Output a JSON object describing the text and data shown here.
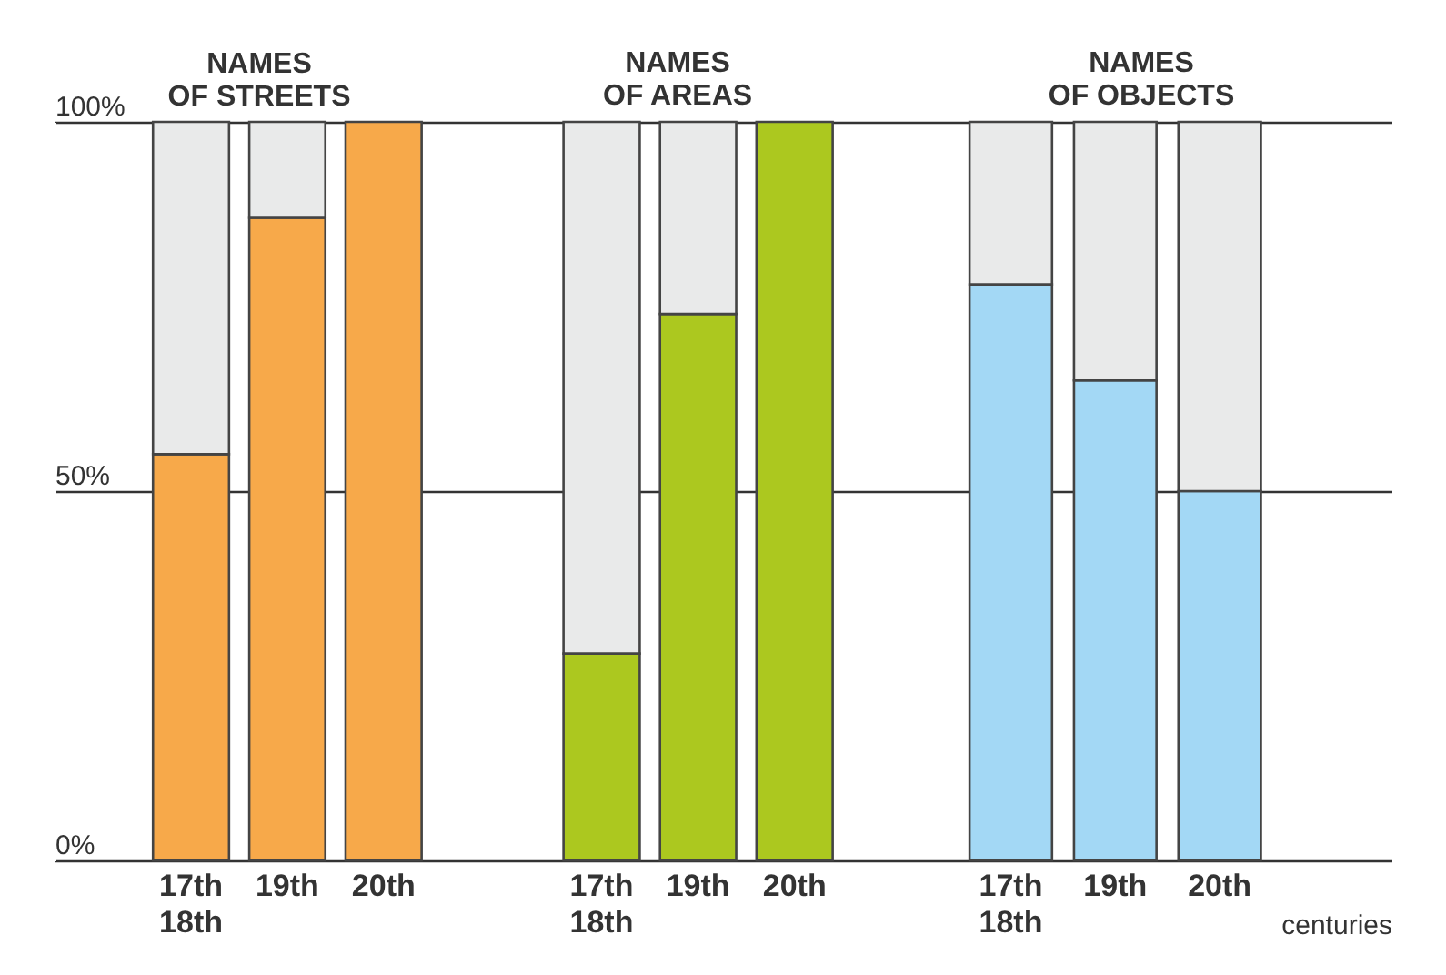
{
  "chart_data": [
    {
      "type": "bar",
      "title": "NAMES OF STREETS",
      "categories": [
        "17th 18th",
        "19th",
        "20th"
      ],
      "stacked": true,
      "ylim": [
        0,
        100
      ],
      "yticks": [
        {
          "value": 0,
          "label": "0%"
        },
        {
          "value": 50,
          "label": "50%"
        },
        {
          "value": 100,
          "label": "100%"
        }
      ],
      "grid": "y",
      "series": [
        {
          "color": "#f7a94a",
          "values": [
            55,
            87,
            100
          ]
        },
        {
          "color": "#e9eaea",
          "values": [
            45,
            13,
            null
          ]
        }
      ]
    },
    {
      "type": "bar",
      "title": "NAMES OF AREAS",
      "categories": [
        "17th 18th",
        "19th",
        "20th"
      ],
      "stacked": true,
      "ylim": [
        0,
        100
      ],
      "yticks": [
        0,
        50,
        100
      ],
      "grid": "y",
      "tick_labels": "x",
      "series": [
        {
          "color": "#acc81f",
          "values": [
            28,
            74,
            100
          ]
        },
        {
          "color": "#e9eaea",
          "values": [
            72,
            26,
            null
          ]
        }
      ]
    },
    {
      "type": "bar",
      "title": "NAMES OF OBJECTS",
      "xlabel": "centuries",
      "categories": [
        "17th 18th",
        "19th",
        "20th"
      ],
      "stacked": true,
      "ylim": [
        0,
        100
      ],
      "yticks": [
        0,
        50,
        100
      ],
      "grid": "y",
      "tick_labels": "x",
      "series": [
        {
          "color": "#a3d8f5",
          "values": [
            78,
            65,
            50
          ]
        },
        {
          "color": "#e9eaea",
          "values": [
            22,
            35,
            50
          ]
        }
      ]
    }
  ]
}
